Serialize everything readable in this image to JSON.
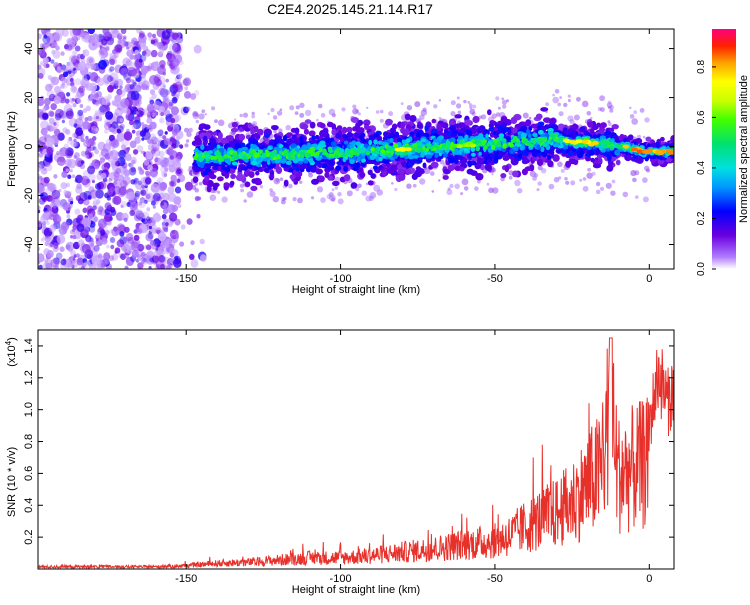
{
  "figure": {
    "title": "C2E4.2025.145.21.14.R17"
  },
  "chart_data": [
    {
      "type": "heatmap",
      "xlabel": "Height of straight line (km)",
      "ylabel": "Frequency (Hz)",
      "xlim": [
        -198,
        8
      ],
      "ylim": [
        -50,
        48
      ],
      "xticks": [
        -150,
        -100,
        -50,
        0
      ],
      "yticks": [
        -40,
        -20,
        0,
        20,
        40
      ],
      "grid": false,
      "colorbar": {
        "label": "Normalized spectral amplitude",
        "range": [
          0.0,
          0.95
        ],
        "ticks": [
          0.0,
          0.2,
          0.4,
          0.6,
          0.8
        ],
        "tick_labels": [
          "0.0",
          "0.2",
          "0.4",
          "0.6",
          "0.8"
        ]
      },
      "ridge": {
        "x": [
          -145,
          -130,
          -115,
          -100,
          -85,
          -70,
          -55,
          -40,
          -30,
          -25,
          -15,
          0,
          8
        ],
        "y": [
          -4,
          -3.5,
          -3,
          -2.5,
          -1.5,
          0,
          1,
          2,
          3,
          2,
          1,
          -2,
          -2
        ]
      },
      "noise_region_x": [
        -198,
        -152
      ]
    },
    {
      "type": "line",
      "xlabel": "Height of straight line (km)",
      "ylabel": "SNR (10 * v/v)",
      "y_multiplier": "(x10",
      "y_multiplier_exp": "4",
      "y_multiplier_close": ")",
      "xlim": [
        -198,
        8
      ],
      "ylim": [
        0,
        1.5
      ],
      "xticks": [
        -150,
        -100,
        -50,
        0
      ],
      "yticks": [
        0.2,
        0.4,
        0.6,
        0.8,
        1.0,
        1.2,
        1.4
      ],
      "ytick_labels": [
        "0.2",
        "0.4",
        "0.6",
        "0.8",
        "1.0",
        "1.2",
        "1.4"
      ],
      "color": "#e8302a",
      "series": [
        {
          "x": [
            -198,
            -180,
            -160,
            -150,
            -140,
            -130,
            -120,
            -110,
            -100,
            -90,
            -80,
            -70,
            -60,
            -50,
            -45,
            -40,
            -35,
            -30,
            -25,
            -20,
            -15,
            -13,
            -10,
            -5,
            0,
            3,
            6,
            8
          ],
          "y": [
            0.02,
            0.02,
            0.02,
            0.03,
            0.05,
            0.06,
            0.08,
            0.1,
            0.1,
            0.12,
            0.15,
            0.18,
            0.22,
            0.25,
            0.3,
            0.38,
            0.45,
            0.5,
            0.6,
            0.75,
            0.9,
            1.45,
            0.85,
            0.9,
            0.95,
            1.3,
            1.1,
            1.2
          ]
        }
      ]
    }
  ]
}
